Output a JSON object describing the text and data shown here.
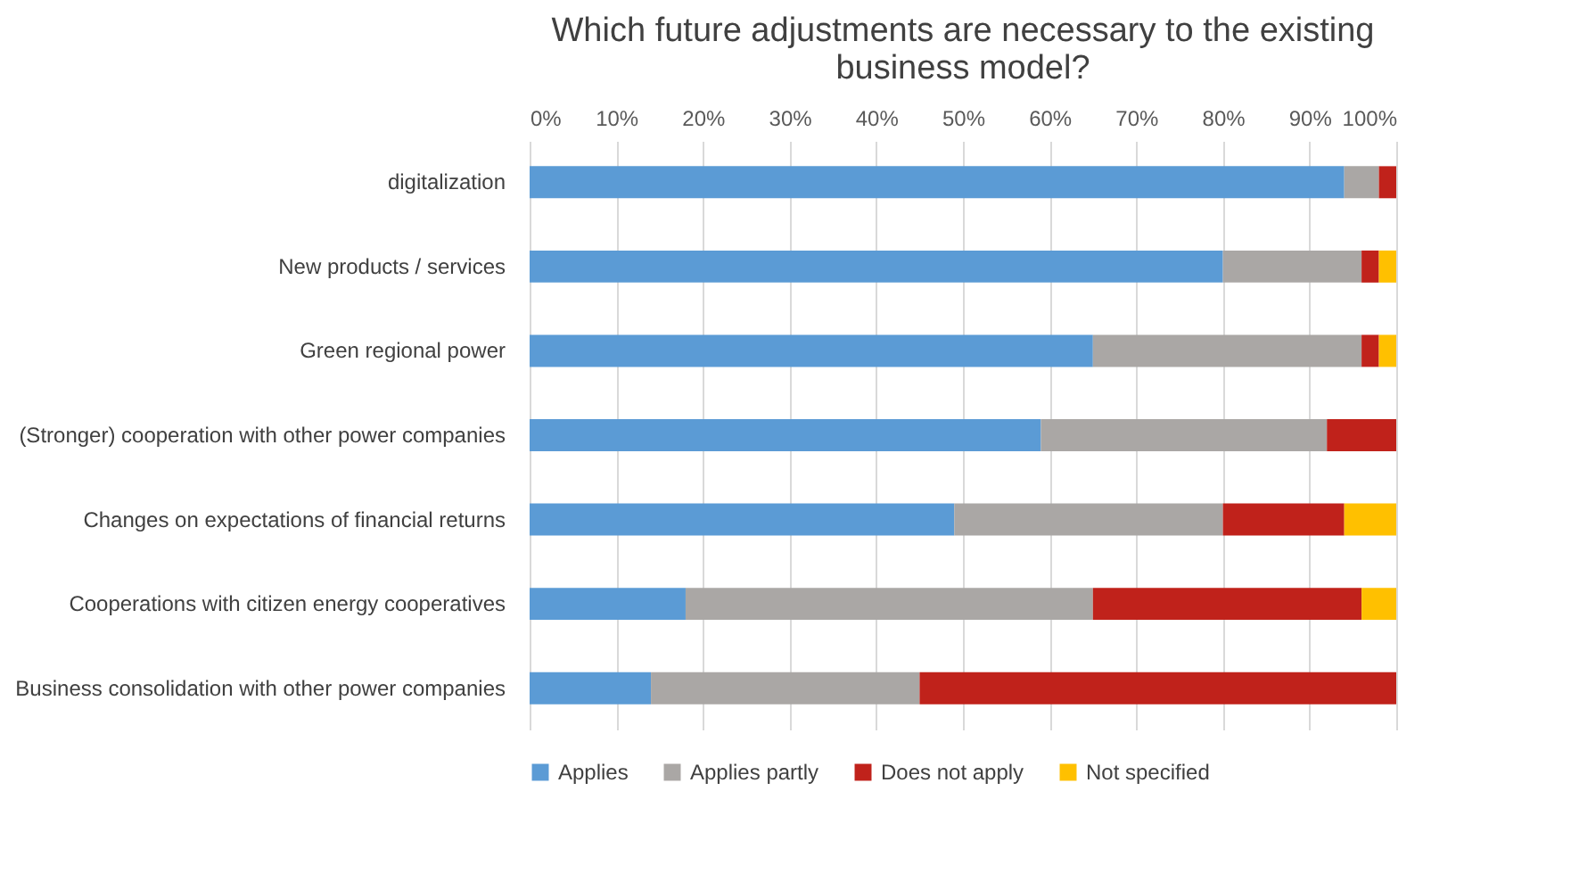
{
  "chart_data": {
    "type": "bar",
    "orientation": "horizontal",
    "stacked": true,
    "title": "Which future adjustments are necessary to the existing business model?",
    "categories": [
      "digitalization",
      "New products / services",
      "Green regional power",
      "(Stronger) cooperation with other power companies",
      "Changes on expectations of financial returns",
      "Cooperations with citizen energy cooperatives",
      "Business consolidation with other power companies"
    ],
    "series": [
      {
        "name": "Applies",
        "color": "#5b9bd5",
        "values": [
          94,
          80,
          65,
          59,
          49,
          18,
          14
        ]
      },
      {
        "name": "Applies partly",
        "color": "#aaa7a5",
        "values": [
          4,
          16,
          31,
          33,
          31,
          47,
          31
        ]
      },
      {
        "name": "Does not apply",
        "color": "#c0221b",
        "values": [
          2,
          2,
          2,
          8,
          14,
          31,
          55
        ]
      },
      {
        "name": "Not specified",
        "color": "#ffc000",
        "values": [
          0,
          2,
          2,
          0,
          6,
          4,
          0
        ]
      }
    ],
    "xlim": [
      0,
      100
    ],
    "xticks": [
      {
        "value": 0,
        "label": "0%"
      },
      {
        "value": 10,
        "label": "10%"
      },
      {
        "value": 20,
        "label": "20%"
      },
      {
        "value": 30,
        "label": "30%"
      },
      {
        "value": 40,
        "label": "40%"
      },
      {
        "value": 50,
        "label": "50%"
      },
      {
        "value": 60,
        "label": "60%"
      },
      {
        "value": 70,
        "label": "70%"
      },
      {
        "value": 80,
        "label": "80%"
      },
      {
        "value": 90,
        "label": "90%"
      },
      {
        "value": 100,
        "label": "100%"
      }
    ],
    "grid": "x",
    "legend": "bottom"
  }
}
